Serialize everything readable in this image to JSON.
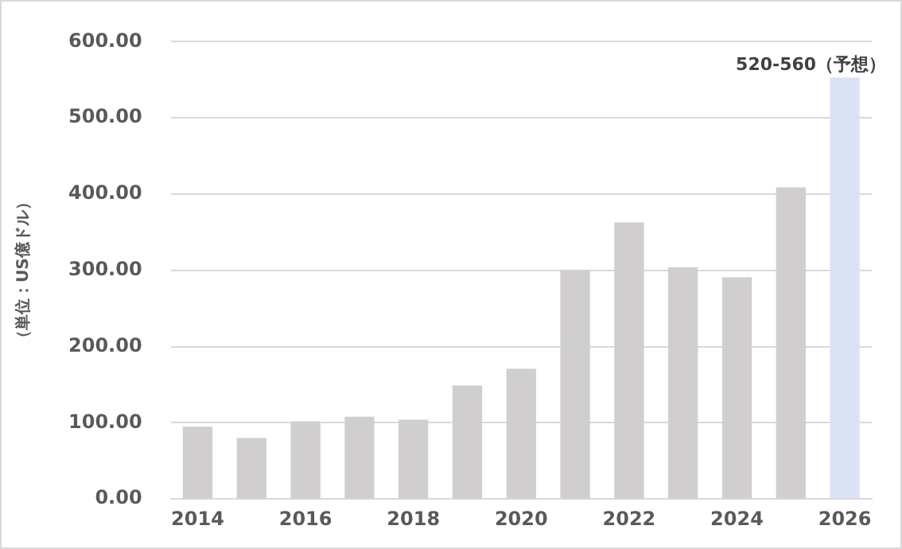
{
  "chart_data": {
    "type": "bar",
    "ylabel": "（単位：US億ドル）",
    "categories": [
      "2014",
      null,
      "2016",
      null,
      "2018",
      null,
      "2020",
      null,
      "2022",
      null,
      "2024",
      null,
      "2026"
    ],
    "values": [
      95,
      80,
      102,
      108,
      104,
      149,
      171,
      300,
      363,
      304,
      291,
      409,
      553
    ],
    "colors": [
      "#d0cece",
      "#d0cece",
      "#d0cece",
      "#d0cece",
      "#d0cece",
      "#d0cece",
      "#d0cece",
      "#d0cece",
      "#d0cece",
      "#d0cece",
      "#d0cece",
      "#d0cece",
      "#dae3f3"
    ],
    "ylim": [
      0,
      600
    ],
    "yticks": [
      {
        "value": 0,
        "label": "0.00"
      },
      {
        "value": 100,
        "label": "100.00"
      },
      {
        "value": 200,
        "label": "200.00"
      },
      {
        "value": 300,
        "label": "300.00"
      },
      {
        "value": 400,
        "label": "400.00"
      },
      {
        "value": 500,
        "label": "500.00"
      },
      {
        "value": 600,
        "label": "600.00"
      }
    ],
    "annotations": [
      {
        "text": "520-560（予想）",
        "x": "2026",
        "y": 553
      }
    ],
    "grid": "y",
    "legend": false
  }
}
